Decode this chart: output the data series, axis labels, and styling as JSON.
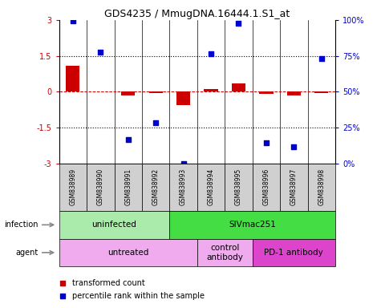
{
  "title": "GDS4235 / MmugDNA.16444.1.S1_at",
  "samples": [
    "GSM838989",
    "GSM838990",
    "GSM838991",
    "GSM838992",
    "GSM838993",
    "GSM838994",
    "GSM838995",
    "GSM838996",
    "GSM838997",
    "GSM838998"
  ],
  "bar_values": [
    1.1,
    0.0,
    -0.15,
    -0.05,
    -0.55,
    0.12,
    0.35,
    -0.1,
    -0.15,
    -0.05
  ],
  "blue_values": [
    2.95,
    1.65,
    -2.0,
    -1.3,
    -3.0,
    1.6,
    2.85,
    -2.15,
    -2.3,
    1.4
  ],
  "ylim": [
    -3,
    3
  ],
  "hlines": [
    1.5,
    -1.5
  ],
  "bar_color": "#cc0000",
  "blue_color": "#0000cc",
  "infection_labels": [
    {
      "text": "uninfected",
      "start": 0,
      "end": 3,
      "color": "#aaeaaa"
    },
    {
      "text": "SIVmac251",
      "start": 4,
      "end": 9,
      "color": "#44dd44"
    }
  ],
  "agent_labels": [
    {
      "text": "untreated",
      "start": 0,
      "end": 4,
      "color": "#f0aaee"
    },
    {
      "text": "control\nantibody",
      "start": 5,
      "end": 6,
      "color": "#f0aaee"
    },
    {
      "text": "PD-1 antibody",
      "start": 7,
      "end": 9,
      "color": "#dd44cc"
    }
  ],
  "tick_vals": [
    -3,
    -1.5,
    0,
    1.5,
    3
  ],
  "tick_labels_left": [
    "-3",
    "-1.5",
    "0",
    "1.5",
    "3"
  ],
  "tick_labels_right": [
    "0%",
    "25%",
    "50%",
    "75%",
    "100%"
  ],
  "legend_items": [
    {
      "color": "#cc0000",
      "label": "transformed count"
    },
    {
      "color": "#0000cc",
      "label": "percentile rank within the sample"
    }
  ]
}
